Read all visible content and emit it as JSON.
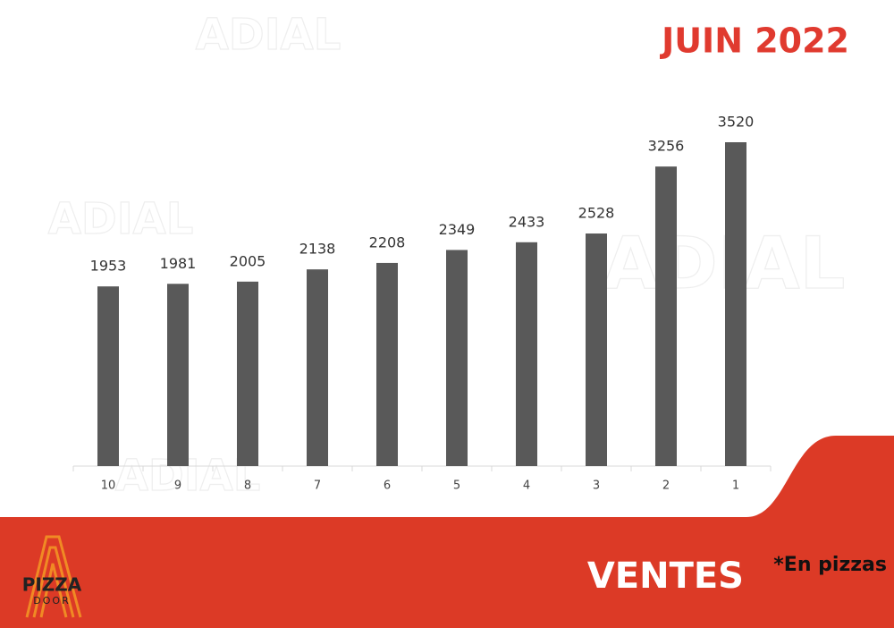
{
  "chart_data": {
    "type": "bar",
    "title": "JUIN 2022",
    "categories": [
      "10",
      "9",
      "8",
      "7",
      "6",
      "5",
      "4",
      "3",
      "2",
      "1"
    ],
    "values": [
      1953,
      1981,
      2005,
      2138,
      2208,
      2349,
      2433,
      2528,
      3256,
      3520
    ],
    "color": "#595959",
    "footer_title": "VENTES",
    "footer_note": "*En pizzas",
    "logo": {
      "line1": "PIZZA",
      "line2": "DOOR"
    },
    "watermark": "ADIAL"
  }
}
